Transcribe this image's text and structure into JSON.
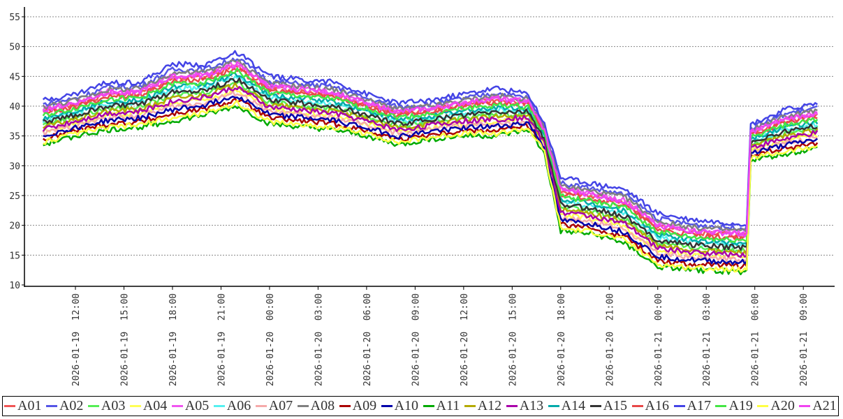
{
  "chart_data": {
    "type": "line",
    "title": "",
    "xlabel": "",
    "ylabel": "",
    "ylim": [
      10,
      56
    ],
    "yticks": [
      10,
      15,
      20,
      25,
      30,
      35,
      40,
      45,
      50,
      55
    ],
    "grid": "horizontal dashed",
    "legend_position": "bottom",
    "xtick_labels": [
      "2026-01-19  12:00",
      "2026-01-19  15:00",
      "2026-01-19  18:00",
      "2026-01-19  21:00",
      "2026-01-20  00:00",
      "2026-01-20  03:00",
      "2026-01-20  06:00",
      "2026-01-20  09:00",
      "2026-01-20  12:00",
      "2026-01-20  15:00",
      "2026-01-20  18:00",
      "2026-01-20  21:00",
      "2026-01-21  00:00",
      "2026-01-21  03:00",
      "2026-01-21  06:00",
      "2026-01-21  09:00"
    ],
    "x": [
      "2026-01-19 10:00",
      "2026-01-19 12:00",
      "2026-01-19 14:00",
      "2026-01-19 16:00",
      "2026-01-19 18:00",
      "2026-01-19 20:00",
      "2026-01-19 22:00",
      "2026-01-20 00:00",
      "2026-01-20 02:00",
      "2026-01-20 04:00",
      "2026-01-20 06:00",
      "2026-01-20 08:00",
      "2026-01-20 10:00",
      "2026-01-20 12:00",
      "2026-01-20 14:00",
      "2026-01-20 16:00",
      "2026-01-20 17:00",
      "2026-01-20 18:00",
      "2026-01-20 20:00",
      "2026-01-20 22:00",
      "2026-01-21 00:00",
      "2026-01-21 02:00",
      "2026-01-21 04:00",
      "2026-01-21 05:30",
      "2026-01-21 05:45",
      "2026-01-21 08:00",
      "2026-01-21 10:00"
    ],
    "series": [
      {
        "name": "A01",
        "color": "#f05555",
        "values": [
          39.1,
          40.3,
          42,
          42.1,
          44.6,
          44.9,
          46.8,
          43,
          42.5,
          42,
          40.3,
          38.8,
          39.4,
          40.3,
          41,
          40.5,
          35.8,
          25.8,
          24.9,
          23.8,
          19.8,
          18.9,
          18.5,
          18.3,
          35.5,
          37.6,
          38.6
        ]
      },
      {
        "name": "A02",
        "color": "#5555e6",
        "values": [
          40.3,
          41.3,
          43.2,
          43.3,
          46.1,
          46.2,
          48.1,
          44.2,
          43.7,
          43.2,
          41.3,
          39.8,
          40.4,
          41.3,
          42.2,
          41.4,
          36.5,
          27.1,
          26.2,
          25.1,
          21.1,
          20.2,
          19.7,
          19.5,
          36.4,
          38.8,
          39.8
        ]
      },
      {
        "name": "A03",
        "color": "#55ee55",
        "values": [
          36.9,
          38.2,
          39.6,
          39.9,
          41.8,
          42.3,
          44.1,
          40.6,
          40.1,
          39.6,
          38.2,
          36.7,
          37.4,
          38.2,
          38.6,
          38.7,
          34.3,
          23.1,
          22.3,
          21.1,
          17.1,
          16.3,
          16,
          15.8,
          33.7,
          35.4,
          36.4
        ]
      },
      {
        "name": "A04",
        "color": "#ffff55",
        "values": [
          35.8,
          37.1,
          38.4,
          38.8,
          40.4,
          41.1,
          42.7,
          39.4,
          38.9,
          38.4,
          37.1,
          35.6,
          36.5,
          37.1,
          37.4,
          37.8,
          33.5,
          21.7,
          21.1,
          19.7,
          15.7,
          15.1,
          14.8,
          14.6,
          32.8,
          34.3,
          35.3
        ]
      },
      {
        "name": "A05",
        "color": "#f055f0",
        "values": [
          39.5,
          40.6,
          42.4,
          42.5,
          45.1,
          45.3,
          47.2,
          43.4,
          42.9,
          42.4,
          40.6,
          39.1,
          39.7,
          40.6,
          41.4,
          40.8,
          36,
          26.2,
          25.3,
          24.2,
          20.2,
          19.3,
          18.9,
          18.7,
          35.8,
          38,
          39
        ]
      },
      {
        "name": "A06",
        "color": "#55f0f0",
        "values": [
          37.6,
          38.9,
          40.4,
          40.6,
          42.7,
          43.2,
          45,
          41.4,
          40.9,
          40.4,
          38.9,
          37.4,
          38.1,
          38.9,
          39.4,
          39.3,
          34.8,
          24,
          23.2,
          22,
          18,
          17.2,
          16.8,
          16.7,
          34.3,
          36.1,
          37.1
        ]
      },
      {
        "name": "A07",
        "color": "#f5aaaa",
        "values": [
          35.4,
          36.8,
          38,
          38.4,
          39.9,
          40.6,
          42.3,
          39,
          38.5,
          38,
          36.8,
          35.3,
          36.1,
          36.8,
          37,
          37.5,
          33.3,
          21.3,
          20.6,
          19.3,
          15.3,
          14.6,
          14.4,
          14.2,
          32.5,
          33.9,
          34.9
        ]
      },
      {
        "name": "A08",
        "color": "#808080",
        "values": [
          39.9,
          41,
          42.8,
          42.9,
          45.6,
          45.7,
          47.7,
          43.8,
          43.3,
          42.8,
          41,
          39.5,
          40,
          41,
          41.8,
          41.1,
          36.3,
          26.7,
          25.7,
          24.7,
          20.7,
          19.7,
          19.3,
          19.1,
          36.1,
          38.4,
          39.4
        ]
      },
      {
        "name": "A09",
        "color": "#aa0000",
        "values": [
          34.4,
          35.9,
          37,
          37.4,
          38.7,
          39.5,
          41.1,
          38,
          37.5,
          37,
          35.9,
          34.4,
          35.3,
          35.9,
          36,
          36.7,
          32.6,
          20.1,
          19.5,
          18.1,
          14.1,
          13.5,
          13.3,
          13.2,
          31.7,
          32.9,
          33.9
        ]
      },
      {
        "name": "A10",
        "color": "#0000aa",
        "values": [
          35,
          36.4,
          37.6,
          38,
          39.4,
          40.2,
          41.8,
          38.6,
          38.1,
          37.6,
          36.4,
          34.9,
          35.8,
          36.4,
          36.6,
          37.2,
          33,
          20.8,
          20.2,
          18.8,
          14.8,
          14.2,
          13.9,
          13.8,
          32.2,
          33.5,
          34.5
        ]
      },
      {
        "name": "A11",
        "color": "#00aa00",
        "values": [
          33.5,
          35,
          36,
          36.5,
          37.5,
          38.5,
          40,
          37,
          36.5,
          36,
          35,
          33.5,
          34.5,
          35,
          35,
          36,
          32,
          19,
          18.5,
          17,
          13,
          12.5,
          12.3,
          12.2,
          31,
          32,
          33
        ]
      },
      {
        "name": "A12",
        "color": "#b4aa00",
        "values": [
          36.5,
          37.8,
          39.2,
          39.5,
          41.3,
          41.9,
          43.6,
          40.2,
          39.7,
          39.2,
          37.8,
          36.3,
          37.1,
          37.8,
          38.2,
          38.4,
          34,
          22.6,
          21.9,
          20.6,
          16.6,
          15.9,
          15.6,
          15.4,
          33.4,
          35,
          36
        ]
      },
      {
        "name": "A13",
        "color": "#aa00aa",
        "values": [
          36.1,
          37.5,
          38.8,
          39.1,
          40.8,
          41.5,
          43.2,
          39.8,
          39.3,
          38.8,
          37.5,
          36,
          36.8,
          37.5,
          37.8,
          38.1,
          33.8,
          22.2,
          21.5,
          20.2,
          16.2,
          15.5,
          15.2,
          15.1,
          33.1,
          34.6,
          35.6
        ]
      },
      {
        "name": "A14",
        "color": "#00aaaa",
        "values": [
          38,
          39.2,
          40.8,
          41,
          43.2,
          43.6,
          45.4,
          41.8,
          41.3,
          40.8,
          39.2,
          37.7,
          38.4,
          39.2,
          39.8,
          39.6,
          35,
          24.4,
          23.6,
          22.4,
          18.4,
          17.6,
          17.2,
          17.1,
          34.6,
          36.5,
          37.5
        ]
      },
      {
        "name": "A15",
        "color": "#333333",
        "values": [
          37.3,
          38.5,
          40,
          40.3,
          42.3,
          42.8,
          44.5,
          41,
          40.5,
          40,
          38.5,
          37,
          37.8,
          38.5,
          39,
          39,
          34.5,
          23.5,
          22.8,
          21.5,
          17.5,
          16.8,
          16.4,
          16.3,
          34,
          35.8,
          36.8
        ]
      },
      {
        "name": "A16",
        "color": "#e84848",
        "values": [
          38.8,
          39.9,
          41.6,
          41.8,
          44.2,
          44.5,
          46.3,
          42.6,
          42.1,
          41.6,
          39.9,
          38.4,
          39.1,
          39.9,
          40.6,
          40.2,
          35.5,
          25.3,
          24.5,
          23.3,
          19.3,
          18.5,
          18,
          17.9,
          35.2,
          37.3,
          38.3
        ]
      },
      {
        "name": "A17",
        "color": "#4444e6",
        "values": [
          41,
          42,
          44,
          44,
          47,
          47,
          49,
          45,
          44.5,
          44,
          42,
          40.5,
          41,
          42,
          43,
          42,
          37,
          28,
          27,
          26,
          22,
          21,
          20.5,
          20.3,
          37,
          39.5,
          40.5
        ]
      },
      {
        "name": "A19",
        "color": "#44e644",
        "values": [
          38.4,
          39.6,
          41.2,
          41.4,
          43.7,
          44,
          45.9,
          42.2,
          41.7,
          41.2,
          39.6,
          38.1,
          38.7,
          39.6,
          40.2,
          39.9,
          35.3,
          24.9,
          24,
          22.9,
          18.9,
          18,
          17.6,
          17.5,
          34.9,
          36.9,
          37.9
        ]
      },
      {
        "name": "A20",
        "color": "#ffff44",
        "values": [
          33.9,
          35.4,
          36.4,
          36.9,
          38,
          38.9,
          40.5,
          37.4,
          36.9,
          36.4,
          35.4,
          33.9,
          34.8,
          35.4,
          35.4,
          36.3,
          32.3,
          19.5,
          18.9,
          17.5,
          13.5,
          12.9,
          12.7,
          12.6,
          31.3,
          32.4,
          33.4
        ]
      },
      {
        "name": "A21",
        "color": "#f044f0",
        "values": [
          39.4,
          40.5,
          42.3,
          42.4,
          44.9,
          45.1,
          47,
          43.3,
          42.8,
          42.3,
          40.5,
          39,
          39.6,
          40.5,
          41.3,
          40.7,
          35.9,
          26,
          25.1,
          24,
          20,
          19.1,
          18.7,
          18.5,
          35.7,
          37.9,
          38.9
        ]
      }
    ]
  }
}
